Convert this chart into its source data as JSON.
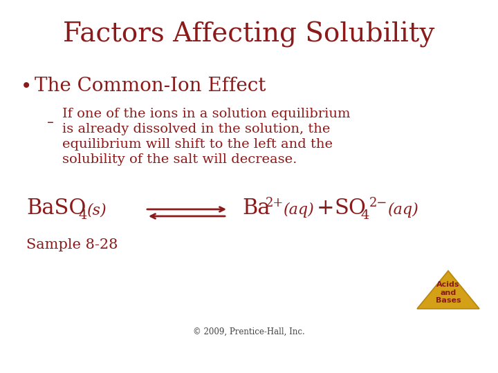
{
  "title": "Factors Affecting Solubility",
  "text_color": "#8B1A1A",
  "bg_color": "#FFFFFF",
  "bullet1": "The Common-Ion Effect",
  "sub_lines": [
    "If one of the ions in a solution equilibrium",
    "is already dissolved in the solution, the",
    "equilibrium will shift to the left and the",
    "solubility of the salt will decrease."
  ],
  "sample_label": "Sample 8-28",
  "copyright": "© 2009, Prentice-Hall, Inc.",
  "triangle_color": "#D4A017",
  "triangle_edge_color": "#B8860B",
  "triangle_text": "Acids\nand\nBases",
  "triangle_text_color": "#8B1A1A",
  "title_fontsize": 28,
  "bullet_fontsize": 20,
  "sub_fontsize": 14,
  "eq_fontsize": 22,
  "sample_fontsize": 15,
  "copyright_fontsize": 8.5
}
